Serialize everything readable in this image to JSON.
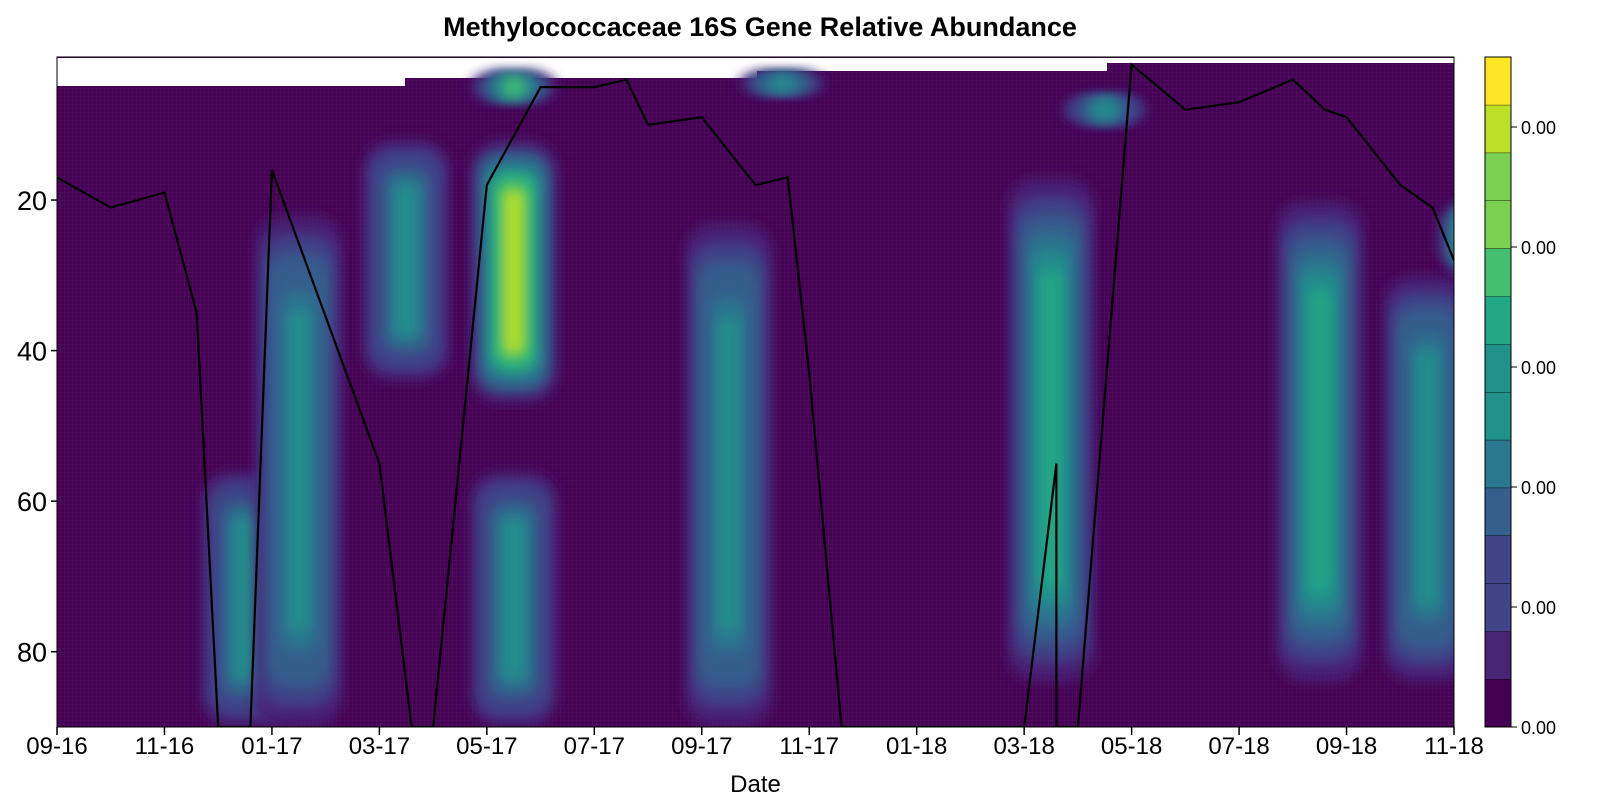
{
  "chart_data": {
    "type": "heatmap",
    "title": "Methylococcaceae 16S Gene Relative Abundance",
    "xlabel": "Date",
    "ylabel": "",
    "x_ticks": [
      "09-16",
      "11-16",
      "01-17",
      "03-17",
      "05-17",
      "07-17",
      "09-17",
      "11-17",
      "01-18",
      "03-18",
      "05-18",
      "07-18",
      "09-18",
      "11-18"
    ],
    "y_ticks": [
      20,
      40,
      60,
      80
    ],
    "ylim": [
      90,
      1
    ],
    "y_inverted": true,
    "colormap": "viridis",
    "colors": [
      "#440154",
      "#482475",
      "#414487",
      "#355f8d",
      "#2a788e",
      "#21918c",
      "#22a884",
      "#44bf70",
      "#7ad151",
      "#bddf26",
      "#fde725"
    ],
    "colorbar_ticks": [
      "0.00",
      "0.00",
      "0.00",
      "0.00",
      "0.00",
      "0.00"
    ],
    "hotspots": [
      {
        "date": "12-16",
        "depth_top": 56,
        "depth_bottom": 90,
        "level": 0.45
      },
      {
        "date": "01-17",
        "depth_top": 22,
        "depth_bottom": 90,
        "level": 0.5
      },
      {
        "date": "03-17",
        "depth_top": 12,
        "depth_bottom": 44,
        "level": 0.45
      },
      {
        "date": "05-17",
        "depth_top": 12,
        "depth_bottom": 47,
        "level": 0.88
      },
      {
        "date": "05-17",
        "depth_top": 56,
        "depth_bottom": 90,
        "level": 0.45
      },
      {
        "date": "05-17",
        "depth_top": 3,
        "depth_bottom": 7,
        "level": 0.65
      },
      {
        "date": "09-17",
        "depth_top": 23,
        "depth_bottom": 90,
        "level": 0.5
      },
      {
        "date": "10-17",
        "depth_top": 3,
        "depth_bottom": 6,
        "level": 0.5
      },
      {
        "date": "03-18",
        "depth_top": 17,
        "depth_bottom": 84,
        "level": 0.55
      },
      {
        "date": "04-18",
        "depth_top": 6,
        "depth_bottom": 10,
        "level": 0.45
      },
      {
        "date": "08-18",
        "depth_top": 20,
        "depth_bottom": 84,
        "level": 0.55
      },
      {
        "date": "10-18",
        "depth_top": 30,
        "depth_bottom": 84,
        "level": 0.5
      },
      {
        "date": "11-18",
        "depth_top": 20,
        "depth_bottom": 30,
        "level": 0.85
      }
    ],
    "line_series": {
      "x": [
        "09-16",
        "10-16",
        "11-16",
        "11-16",
        "12-16",
        "12-16",
        "01-17",
        "03-17",
        "03-17",
        "04-17",
        "05-17",
        "06-17",
        "07-17",
        "07-17",
        "08-17",
        "09-17",
        "10-17",
        "10-17",
        "11-17",
        "11-17",
        "03-18",
        "03-18",
        "03-18",
        "04-18",
        "05-18",
        "06-18",
        "07-18",
        "08-18",
        "08-18",
        "09-18",
        "10-18",
        "10-18",
        "11-18"
      ],
      "y": [
        17,
        21,
        19,
        35,
        90,
        90,
        16,
        55,
        90,
        90,
        18,
        5,
        5,
        4,
        10,
        9,
        18,
        17,
        43,
        90,
        90,
        55,
        90,
        90,
        2,
        8,
        7,
        4,
        8,
        9,
        18,
        21,
        28
      ]
    }
  }
}
